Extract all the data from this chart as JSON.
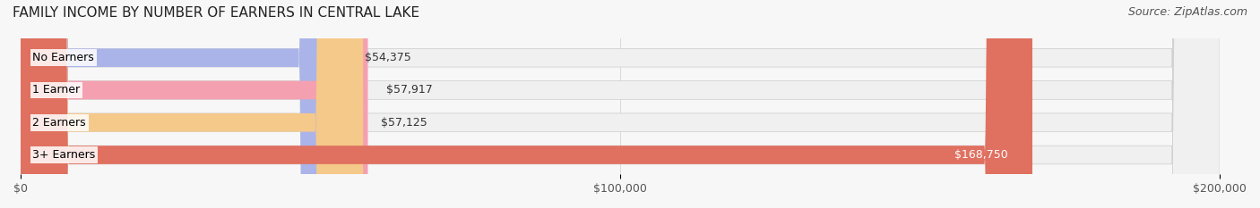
{
  "title": "FAMILY INCOME BY NUMBER OF EARNERS IN CENTRAL LAKE",
  "source": "Source: ZipAtlas.com",
  "categories": [
    "No Earners",
    "1 Earner",
    "2 Earners",
    "3+ Earners"
  ],
  "values": [
    54375,
    57917,
    57125,
    168750
  ],
  "bar_colors": [
    "#aab4e8",
    "#f4a0b0",
    "#f5c98a",
    "#e07060"
  ],
  "bar_bg_color": "#f0f0f0",
  "value_labels": [
    "$54,375",
    "$57,917",
    "$57,125",
    "$168,750"
  ],
  "xlim": [
    0,
    200000
  ],
  "xticks": [
    0,
    100000,
    200000
  ],
  "xtick_labels": [
    "$0",
    "$100,000",
    "$200,000"
  ],
  "figsize": [
    14.06,
    2.33
  ],
  "dpi": 100,
  "title_fontsize": 11,
  "label_fontsize": 9,
  "value_fontsize": 9,
  "source_fontsize": 9,
  "bg_color": "#f7f7f7"
}
